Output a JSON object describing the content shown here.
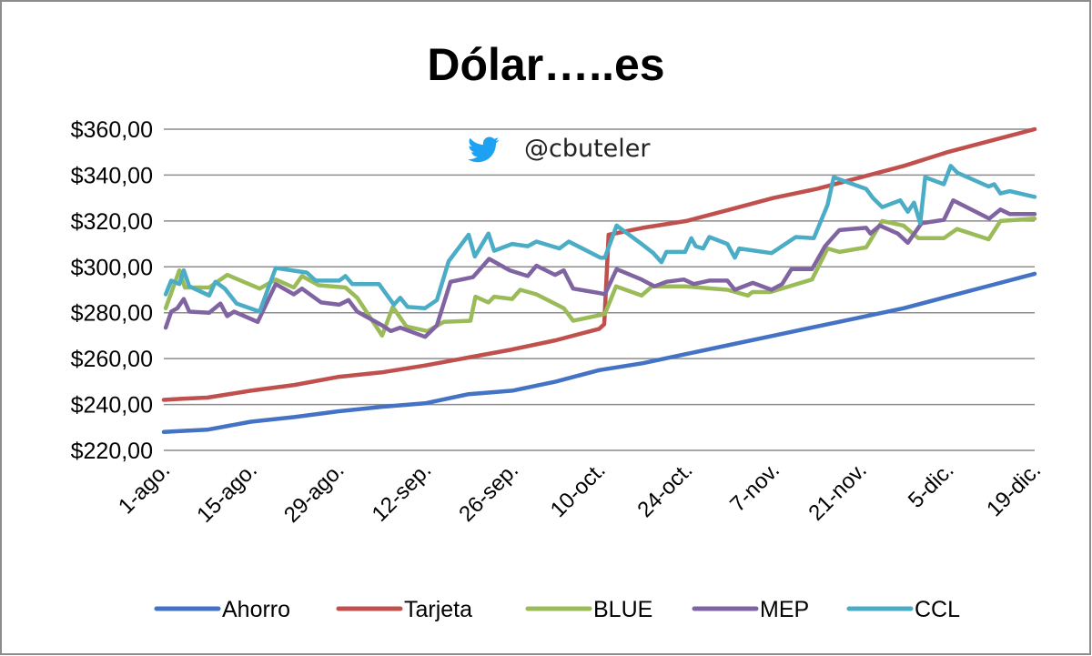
{
  "chart_data": {
    "type": "line",
    "title": "Dólar…..es",
    "watermark": "@cbuteler",
    "xlabel": "",
    "ylabel": "",
    "ylim": [
      220,
      360
    ],
    "y_ticks": [
      220,
      240,
      260,
      280,
      300,
      320,
      340,
      360
    ],
    "y_tick_labels": [
      "$220,00",
      "$240,00",
      "$260,00",
      "$280,00",
      "$300,00",
      "$320,00",
      "$340,00",
      "$360,00"
    ],
    "x_unit": "days since 1-ago",
    "xlim": [
      0,
      140
    ],
    "x_tick_labels": [
      "1-ago.",
      "15-ago.",
      "29-ago.",
      "12-sep.",
      "26-sep.",
      "10-oct.",
      "24-oct.",
      "7-nov.",
      "21-nov.",
      "5-dic.",
      "19-dic."
    ],
    "grid": true,
    "legend_position": "bottom",
    "series": [
      {
        "name": "Ahorro",
        "color": "#4472C4",
        "points": [
          [
            0,
            228
          ],
          [
            3,
            228.5
          ],
          [
            7,
            229
          ],
          [
            14,
            232.5
          ],
          [
            21,
            234.5
          ],
          [
            28,
            237
          ],
          [
            35,
            239
          ],
          [
            42,
            240.5
          ],
          [
            49,
            244.5
          ],
          [
            56,
            246
          ],
          [
            63,
            250
          ],
          [
            70,
            255
          ],
          [
            77,
            258
          ],
          [
            84,
            262
          ],
          [
            91,
            266
          ],
          [
            98,
            270
          ],
          [
            105,
            274
          ],
          [
            112,
            278
          ],
          [
            119,
            282
          ],
          [
            126,
            287
          ],
          [
            133,
            292
          ],
          [
            140,
            297
          ]
        ]
      },
      {
        "name": "Tarjeta",
        "color": "#C0504D",
        "points": [
          [
            0,
            242
          ],
          [
            3,
            242.5
          ],
          [
            7,
            243
          ],
          [
            14,
            246
          ],
          [
            21,
            248.5
          ],
          [
            28,
            252
          ],
          [
            35,
            254
          ],
          [
            42,
            257
          ],
          [
            49,
            260.5
          ],
          [
            56,
            264
          ],
          [
            63,
            268
          ],
          [
            70,
            273
          ],
          [
            70.8,
            275
          ],
          [
            71.5,
            314
          ],
          [
            77,
            317
          ],
          [
            84,
            320
          ],
          [
            91,
            325
          ],
          [
            98,
            330
          ],
          [
            105,
            334
          ],
          [
            112,
            339
          ],
          [
            119,
            344
          ],
          [
            126,
            350
          ],
          [
            133,
            355
          ],
          [
            140,
            360
          ]
        ]
      },
      {
        "name": "BLUE",
        "color": "#9BBB59",
        "points": [
          [
            0.3,
            282
          ],
          [
            2.5,
            298.5
          ],
          [
            3.4,
            291
          ],
          [
            7.3,
            291
          ],
          [
            10.2,
            296.5
          ],
          [
            15.4,
            290.5
          ],
          [
            18,
            294.5
          ],
          [
            20.9,
            291
          ],
          [
            22.2,
            296
          ],
          [
            24.9,
            292
          ],
          [
            29.2,
            291
          ],
          [
            31.1,
            286.5
          ],
          [
            35.1,
            270
          ],
          [
            36.8,
            282.5
          ],
          [
            39,
            274
          ],
          [
            42.4,
            272
          ],
          [
            45,
            276
          ],
          [
            49.3,
            276.5
          ],
          [
            50.1,
            287
          ],
          [
            52.2,
            284.5
          ],
          [
            53.1,
            287
          ],
          [
            56,
            286
          ],
          [
            57.3,
            290
          ],
          [
            59.9,
            288
          ],
          [
            64.3,
            282
          ],
          [
            65.8,
            276.5
          ],
          [
            70.2,
            279
          ],
          [
            70.9,
            279.5
          ],
          [
            72.7,
            291.5
          ],
          [
            76.8,
            287.5
          ],
          [
            78.5,
            291.5
          ],
          [
            83.8,
            291.5
          ],
          [
            90.6,
            290
          ],
          [
            93.9,
            287.5
          ],
          [
            94.6,
            289
          ],
          [
            97.5,
            289
          ],
          [
            104.2,
            294.5
          ],
          [
            106.7,
            308
          ],
          [
            108.6,
            306.5
          ],
          [
            112.9,
            308.5
          ],
          [
            115.5,
            320
          ],
          [
            118.9,
            318
          ],
          [
            121.3,
            312.5
          ],
          [
            125.4,
            312.5
          ],
          [
            127.5,
            316.5
          ],
          [
            132.6,
            312
          ],
          [
            134.5,
            320
          ],
          [
            140,
            321
          ]
        ]
      },
      {
        "name": "MEP",
        "color": "#8064A2",
        "points": [
          [
            0.3,
            273.5
          ],
          [
            1.2,
            280.5
          ],
          [
            2.2,
            282
          ],
          [
            3.2,
            286
          ],
          [
            4.1,
            280.5
          ],
          [
            7.3,
            280
          ],
          [
            9.1,
            284
          ],
          [
            10.2,
            278.5
          ],
          [
            11.3,
            280.5
          ],
          [
            15.1,
            276
          ],
          [
            18,
            292.5
          ],
          [
            20.9,
            288
          ],
          [
            22.2,
            290.5
          ],
          [
            25.3,
            284.5
          ],
          [
            28.2,
            283.5
          ],
          [
            29.7,
            285.5
          ],
          [
            31.1,
            280.5
          ],
          [
            35.1,
            274.5
          ],
          [
            36.5,
            272
          ],
          [
            38,
            273.5
          ],
          [
            42,
            269.5
          ],
          [
            43.9,
            274.5
          ],
          [
            46.1,
            293.5
          ],
          [
            49.7,
            295.5
          ],
          [
            52.3,
            303.5
          ],
          [
            55.6,
            298.5
          ],
          [
            58.5,
            296
          ],
          [
            59.9,
            300.5
          ],
          [
            62.9,
            296.5
          ],
          [
            64.3,
            298.5
          ],
          [
            65.8,
            290.5
          ],
          [
            70.2,
            288.5
          ],
          [
            70.9,
            288
          ],
          [
            72.8,
            299
          ],
          [
            76.8,
            294.5
          ],
          [
            78.9,
            291.5
          ],
          [
            80.8,
            293.5
          ],
          [
            83.6,
            294.5
          ],
          [
            85.2,
            292.5
          ],
          [
            87.7,
            294
          ],
          [
            90.6,
            294
          ],
          [
            91.8,
            290
          ],
          [
            94.7,
            293
          ],
          [
            97.7,
            290
          ],
          [
            99.4,
            292.5
          ],
          [
            100.9,
            299
          ],
          [
            104.2,
            299
          ],
          [
            106.3,
            309
          ],
          [
            108.6,
            316
          ],
          [
            112.9,
            317
          ],
          [
            113.6,
            314.5
          ],
          [
            115.1,
            318
          ],
          [
            118,
            314.5
          ],
          [
            119.6,
            310.5
          ],
          [
            121.8,
            319
          ],
          [
            125.4,
            320.5
          ],
          [
            126.9,
            329
          ],
          [
            132.7,
            321
          ],
          [
            134.5,
            325
          ],
          [
            136,
            323
          ],
          [
            140,
            323
          ]
        ]
      },
      {
        "name": "CCL",
        "color": "#4BACC6",
        "points": [
          [
            0.3,
            288
          ],
          [
            1.2,
            294
          ],
          [
            2.5,
            292.5
          ],
          [
            3.2,
            298.5
          ],
          [
            4.1,
            291.5
          ],
          [
            7.3,
            287.5
          ],
          [
            8.3,
            293.5
          ],
          [
            9.8,
            290.5
          ],
          [
            11.7,
            284
          ],
          [
            15.4,
            280.5
          ],
          [
            18,
            299.5
          ],
          [
            23,
            297.5
          ],
          [
            24.4,
            294
          ],
          [
            28.2,
            294
          ],
          [
            29.2,
            296
          ],
          [
            30.3,
            292.5
          ],
          [
            34.6,
            292.5
          ],
          [
            37,
            283.5
          ],
          [
            38,
            286.5
          ],
          [
            39.2,
            282.5
          ],
          [
            42,
            282
          ],
          [
            43.9,
            285.5
          ],
          [
            45.8,
            302.5
          ],
          [
            49,
            314
          ],
          [
            50,
            304.5
          ],
          [
            52.2,
            314.5
          ],
          [
            53.1,
            307
          ],
          [
            56,
            310
          ],
          [
            58.5,
            309
          ],
          [
            59.9,
            311
          ],
          [
            63.6,
            308
          ],
          [
            65.1,
            311
          ],
          [
            70.2,
            304
          ],
          [
            70.9,
            304
          ],
          [
            72.8,
            318
          ],
          [
            76.8,
            310
          ],
          [
            78.7,
            306
          ],
          [
            80,
            302
          ],
          [
            80.8,
            306.5
          ],
          [
            83.8,
            306.5
          ],
          [
            84.8,
            312.5
          ],
          [
            85.5,
            309
          ],
          [
            86.7,
            308
          ],
          [
            87.7,
            313
          ],
          [
            90.6,
            310
          ],
          [
            91.8,
            304
          ],
          [
            92.5,
            308
          ],
          [
            97.7,
            306
          ],
          [
            99.1,
            308.5
          ],
          [
            101.6,
            313
          ],
          [
            104.5,
            312.5
          ],
          [
            106.7,
            327
          ],
          [
            107.7,
            339
          ],
          [
            112.9,
            334
          ],
          [
            114,
            330
          ],
          [
            115.5,
            326
          ],
          [
            118.4,
            329
          ],
          [
            119.6,
            324
          ],
          [
            120.6,
            328
          ],
          [
            121.6,
            319
          ],
          [
            122.4,
            339
          ],
          [
            125.4,
            336
          ],
          [
            126.5,
            344
          ],
          [
            127.6,
            341
          ],
          [
            132.6,
            335
          ],
          [
            133.5,
            336
          ],
          [
            134.5,
            332
          ],
          [
            136,
            333
          ],
          [
            140,
            330.5
          ]
        ]
      }
    ]
  }
}
